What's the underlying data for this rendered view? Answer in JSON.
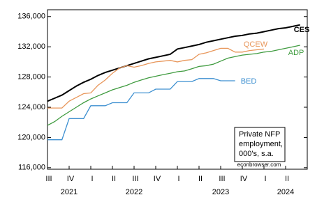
{
  "chart_data": {
    "type": "line",
    "xlim": [
      2021.5,
      2024.5
    ],
    "xticks": [
      {
        "value": 2021.5,
        "label": "III"
      },
      {
        "value": 2021.75,
        "label": "IV"
      },
      {
        "value": 2022,
        "label": "I"
      },
      {
        "value": 2022.25,
        "label": "II"
      },
      {
        "value": 2022.5,
        "label": "III"
      },
      {
        "value": 2022.75,
        "label": "IV"
      },
      {
        "value": 2023,
        "label": "I"
      },
      {
        "value": 2023.25,
        "label": "II"
      },
      {
        "value": 2023.5,
        "label": "III"
      },
      {
        "value": 2023.75,
        "label": "IV"
      },
      {
        "value": 2024,
        "label": "I"
      },
      {
        "value": 2024.25,
        "label": "II"
      }
    ],
    "year_labels": [
      {
        "value": 2021.75,
        "label": "2021"
      },
      {
        "value": 2022.5,
        "label": "2022"
      },
      {
        "value": 2023.5,
        "label": "2023"
      },
      {
        "value": 2024.25,
        "label": "2024"
      }
    ],
    "ylim": [
      115800,
      136900
    ],
    "yticks": [
      {
        "value": 116000,
        "label": "116,000"
      },
      {
        "value": 120000,
        "label": "120,000"
      },
      {
        "value": 124000,
        "label": "124,000"
      },
      {
        "value": 128000,
        "label": "128,000"
      },
      {
        "value": 132000,
        "label": "132,000"
      },
      {
        "value": 136000,
        "label": "136,000"
      }
    ],
    "x": [
      2021.5,
      2021.5833,
      2021.6667,
      2021.75,
      2021.8333,
      2021.9167,
      2022,
      2022.0833,
      2022.1667,
      2022.25,
      2022.3333,
      2022.4167,
      2022.5,
      2022.5833,
      2022.6667,
      2022.75,
      2022.8333,
      2022.9167,
      2023,
      2023.0833,
      2023.1667,
      2023.25,
      2023.3333,
      2023.4167,
      2023.5,
      2023.5833,
      2023.6667,
      2023.75,
      2023.8333,
      2023.9167,
      2024,
      2024.0833,
      2024.1667,
      2024.25,
      2024.3333,
      2024.4167
    ],
    "series": [
      {
        "name": "CES",
        "color": "#000000",
        "values": [
          124800,
          125200,
          125600,
          126200,
          126800,
          127300,
          127700,
          128200,
          128600,
          128900,
          129200,
          129500,
          129800,
          130100,
          130400,
          130600,
          130800,
          131000,
          131700,
          131900,
          132100,
          132300,
          132600,
          132800,
          133000,
          133200,
          133400,
          133500,
          133700,
          133800,
          134000,
          134200,
          134400,
          134500,
          134700,
          134900
        ]
      },
      {
        "name": "QCEW",
        "color": "#e8965a",
        "values": [
          123900,
          123900,
          123900,
          124800,
          125300,
          125800,
          125900,
          126900,
          127600,
          128500,
          129200,
          129500,
          129300,
          129500,
          129800,
          130000,
          130100,
          130200,
          130000,
          130200,
          130300,
          131000,
          131200,
          131500,
          131800,
          131800,
          131300,
          131300,
          131500,
          131600,
          131700,
          null,
          null,
          null,
          null,
          null
        ]
      },
      {
        "name": "ADP",
        "color": "#3f9b3f",
        "values": [
          121600,
          122100,
          122800,
          123400,
          124000,
          124600,
          125100,
          125500,
          125900,
          126300,
          126600,
          126900,
          127300,
          127600,
          127900,
          128100,
          128300,
          128500,
          128700,
          128800,
          129100,
          129400,
          129500,
          129700,
          130100,
          130500,
          130700,
          130900,
          131000,
          131100,
          131300,
          131400,
          131600,
          131800,
          132000,
          132200
        ]
      },
      {
        "name": "BED",
        "color": "#3c8fd0",
        "values": [
          119700,
          119700,
          119700,
          122500,
          122500,
          122500,
          124200,
          124200,
          124200,
          124600,
          124600,
          124600,
          125900,
          125900,
          125900,
          126400,
          126400,
          126400,
          127400,
          127400,
          127400,
          127800,
          127800,
          127800,
          127500,
          127500,
          127500,
          null,
          null,
          null,
          null,
          null,
          null,
          null,
          null,
          null
        ]
      }
    ],
    "note": [
      "Private NFP",
      "employment,",
      "000's, s.a."
    ],
    "source": "econbrowser.com"
  }
}
